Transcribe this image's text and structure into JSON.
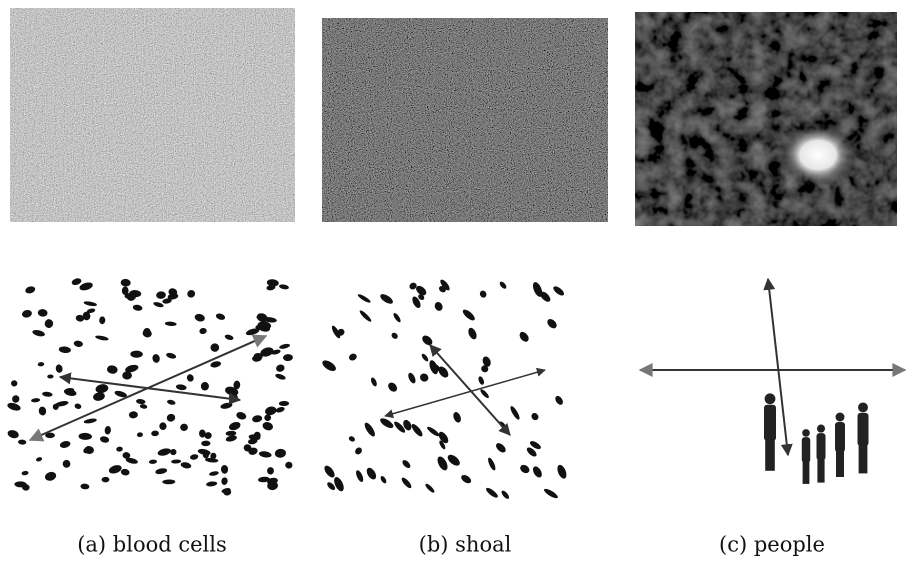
{
  "panels": [
    {
      "caption": "(a) blood cells"
    },
    {
      "caption": "(b) shoal"
    },
    {
      "caption": "(c) people"
    }
  ]
}
